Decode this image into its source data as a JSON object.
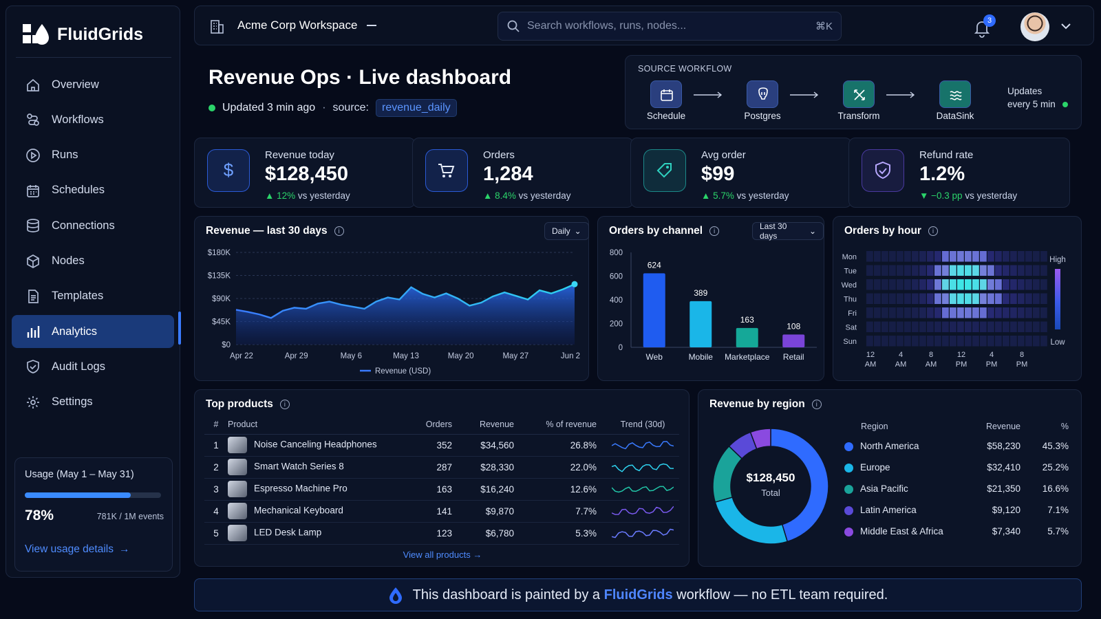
{
  "app": {
    "name": "FluidGrids"
  },
  "sidebar": {
    "items": [
      {
        "label": "Overview",
        "icon": "home-icon"
      },
      {
        "label": "Workflows",
        "icon": "workflow-icon"
      },
      {
        "label": "Runs",
        "icon": "play-icon"
      },
      {
        "label": "Schedules",
        "icon": "calendar-icon"
      },
      {
        "label": "Connections",
        "icon": "database-icon"
      },
      {
        "label": "Nodes",
        "icon": "cube-icon"
      },
      {
        "label": "Templates",
        "icon": "document-icon"
      },
      {
        "label": "Analytics",
        "icon": "bar-chart-icon",
        "active": true
      },
      {
        "label": "Audit Logs",
        "icon": "shield-check-icon"
      },
      {
        "label": "Settings",
        "icon": "gear-icon"
      }
    ],
    "usage": {
      "title": "Usage (May 1 – May 31)",
      "percent_label": "78%",
      "percent": 0.78,
      "events": "781K / 1M events",
      "link": "View usage details"
    }
  },
  "header": {
    "workspace": "Acme Corp Workspace",
    "search_placeholder": "Search workflows, runs, nodes...",
    "shortcut": "⌘K",
    "notifications": "3"
  },
  "page": {
    "title": "Revenue Ops · Live dashboard",
    "updated": "Updated 3 min ago",
    "source_label": "source:",
    "source_value": "revenue_daily"
  },
  "workflow": {
    "title": "SOURCE WORKFLOW",
    "steps": [
      {
        "label": "Schedule",
        "icon": "calendar-icon"
      },
      {
        "label": "Postgres",
        "icon": "postgres-icon"
      },
      {
        "label": "Transform",
        "icon": "transform-icon"
      },
      {
        "label": "DataSink",
        "icon": "datasink-icon"
      }
    ],
    "update_line1": "Updates",
    "update_line2": "every 5 min"
  },
  "kpis": [
    {
      "label": "Revenue today",
      "value": "$128,450",
      "delta": "12%",
      "delta_suffix": "vs yesterday",
      "direction": "up",
      "icon": "dollar-icon",
      "color": "#2b5bd7"
    },
    {
      "label": "Orders",
      "value": "1,284",
      "delta": "8.4%",
      "delta_suffix": "vs yesterday",
      "direction": "up",
      "icon": "cart-icon",
      "color": "#2b5bd7"
    },
    {
      "label": "Avg order",
      "value": "$99",
      "delta": "5.7%",
      "delta_suffix": "vs yesterday",
      "direction": "up",
      "icon": "tag-icon",
      "color": "#1c8a8a"
    },
    {
      "label": "Refund rate",
      "value": "1.2%",
      "delta": "−0.3 pp",
      "delta_suffix": "vs yesterday",
      "direction": "down",
      "icon": "shield-check-icon",
      "color": "#4a3aa0"
    }
  ],
  "revenue_chart": {
    "title": "Revenue — last 30 days",
    "dropdown": "Daily",
    "legend": "Revenue (USD)",
    "yticks": [
      "$180K",
      "$135K",
      "$90K",
      "$45K",
      "$0"
    ],
    "xticks": [
      "Apr 22",
      "Apr 29",
      "May 6",
      "May 13",
      "May 20",
      "May 27",
      "Jun 2"
    ]
  },
  "channel_chart": {
    "title": "Orders by channel",
    "dropdown": "Last 30 days",
    "yticks": [
      "800",
      "600",
      "400",
      "200",
      "0"
    ]
  },
  "hour_chart": {
    "title": "Orders by hour",
    "days": [
      "Mon",
      "Tue",
      "Wed",
      "Thu",
      "Fri",
      "Sat",
      "Sun"
    ],
    "hours": [
      {
        "top": "12",
        "bottom": "AM"
      },
      {
        "top": "4",
        "bottom": "AM"
      },
      {
        "top": "8",
        "bottom": "AM"
      },
      {
        "top": "12",
        "bottom": "PM"
      },
      {
        "top": "4",
        "bottom": "PM"
      },
      {
        "top": "8",
        "bottom": "PM"
      }
    ],
    "high": "High",
    "low": "Low"
  },
  "products": {
    "title": "Top products",
    "columns": [
      "#",
      "Product",
      "Orders",
      "Revenue",
      "% of revenue",
      "Trend (30d)"
    ],
    "rows": [
      {
        "rank": "1",
        "name": "Noise Canceling Headphones",
        "orders": "352",
        "revenue": "$34,560",
        "pct": "26.8%"
      },
      {
        "rank": "2",
        "name": "Smart Watch Series 8",
        "orders": "287",
        "revenue": "$28,330",
        "pct": "22.0%"
      },
      {
        "rank": "3",
        "name": "Espresso Machine Pro",
        "orders": "163",
        "revenue": "$16,240",
        "pct": "12.6%"
      },
      {
        "rank": "4",
        "name": "Mechanical Keyboard",
        "orders": "141",
        "revenue": "$9,870",
        "pct": "7.7%"
      },
      {
        "rank": "5",
        "name": "LED Desk Lamp",
        "orders": "123",
        "revenue": "$6,780",
        "pct": "5.3%"
      }
    ],
    "link": "View all products"
  },
  "regions": {
    "title": "Revenue by region",
    "total": "$128,450",
    "total_label": "Total",
    "columns": [
      "Region",
      "Revenue",
      "%"
    ],
    "rows": [
      {
        "name": "North America",
        "revenue": "$58,230",
        "pct": "45.3%",
        "color": "#2f6bff"
      },
      {
        "name": "Europe",
        "revenue": "$32,410",
        "pct": "25.2%",
        "color": "#1ab6e8"
      },
      {
        "name": "Asia Pacific",
        "revenue": "$21,350",
        "pct": "16.6%",
        "color": "#1aa39a"
      },
      {
        "name": "Latin America",
        "revenue": "$9,120",
        "pct": "7.1%",
        "color": "#5a4ad8"
      },
      {
        "name": "Middle East & Africa",
        "revenue": "$7,340",
        "pct": "5.7%",
        "color": "#8a4ae0"
      }
    ]
  },
  "banner": {
    "prefix": "This dashboard is painted by a",
    "brand": "FluidGrids",
    "suffix": "workflow — no ETL team required."
  },
  "chart_data": [
    {
      "type": "area",
      "title": "Revenue — last 30 days",
      "series": [
        {
          "name": "Revenue (USD)",
          "values": [
            68,
            64,
            59,
            52,
            66,
            72,
            70,
            80,
            84,
            78,
            74,
            70,
            84,
            92,
            88,
            112,
            99,
            92,
            100,
            90,
            76,
            82,
            94,
            102,
            95,
            88,
            106,
            100,
            108,
            118
          ]
        }
      ],
      "x_ticks": [
        "Apr 22",
        "Apr 29",
        "May 6",
        "May 13",
        "May 20",
        "May 27",
        "Jun 2"
      ],
      "ylim": [
        0,
        180
      ],
      "y_unit": "$K"
    },
    {
      "type": "bar",
      "title": "Orders by channel",
      "categories": [
        "Web",
        "Mobile",
        "Marketplace",
        "Retail"
      ],
      "values": [
        624,
        389,
        163,
        108
      ],
      "ylim": [
        0,
        800
      ],
      "colors": [
        "#1f5cf0",
        "#1ab6e8",
        "#15a898",
        "#7a44d8"
      ]
    },
    {
      "type": "heatmap",
      "title": "Orders by hour",
      "rows": [
        "Mon",
        "Tue",
        "Wed",
        "Thu",
        "Fri",
        "Sat",
        "Sun"
      ],
      "columns": 24,
      "scale": [
        "Low",
        "High"
      ]
    },
    {
      "type": "pie",
      "title": "Revenue by region",
      "categories": [
        "North America",
        "Europe",
        "Asia Pacific",
        "Latin America",
        "Middle East & Africa"
      ],
      "values": [
        45.3,
        25.2,
        16.6,
        7.1,
        5.7
      ],
      "colors": [
        "#2f6bff",
        "#1ab6e8",
        "#1aa39a",
        "#5a4ad8",
        "#8a4ae0"
      ]
    }
  ]
}
